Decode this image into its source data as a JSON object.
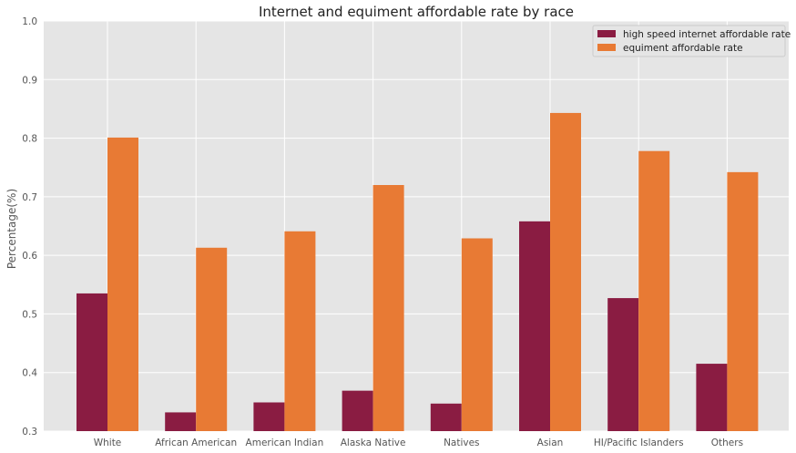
{
  "chart_data": {
    "type": "bar",
    "title": "Internet and equiment affordable rate by race",
    "xlabel": "",
    "ylabel": "Percentage(%)",
    "ylim": [
      0.3,
      1.0
    ],
    "yticks": [
      "0.3",
      "0.4",
      "0.5",
      "0.6",
      "0.7",
      "0.8",
      "0.9",
      "1.0"
    ],
    "grid": true,
    "legend_position": "top-right",
    "categories": [
      "White",
      "African American",
      "American Indian",
      "Alaska Native",
      "Natives",
      "Asian",
      "HI/Pacific Islanders",
      "Others"
    ],
    "series": [
      {
        "name": "high speed internet affordable rate",
        "color": "#8a1c42",
        "values": [
          0.535,
          0.332,
          0.349,
          0.369,
          0.347,
          0.658,
          0.527,
          0.415
        ]
      },
      {
        "name": "equiment affordable rate",
        "color": "#e87a34",
        "values": [
          0.801,
          0.613,
          0.641,
          0.72,
          0.629,
          0.843,
          0.778,
          0.742
        ]
      }
    ]
  }
}
